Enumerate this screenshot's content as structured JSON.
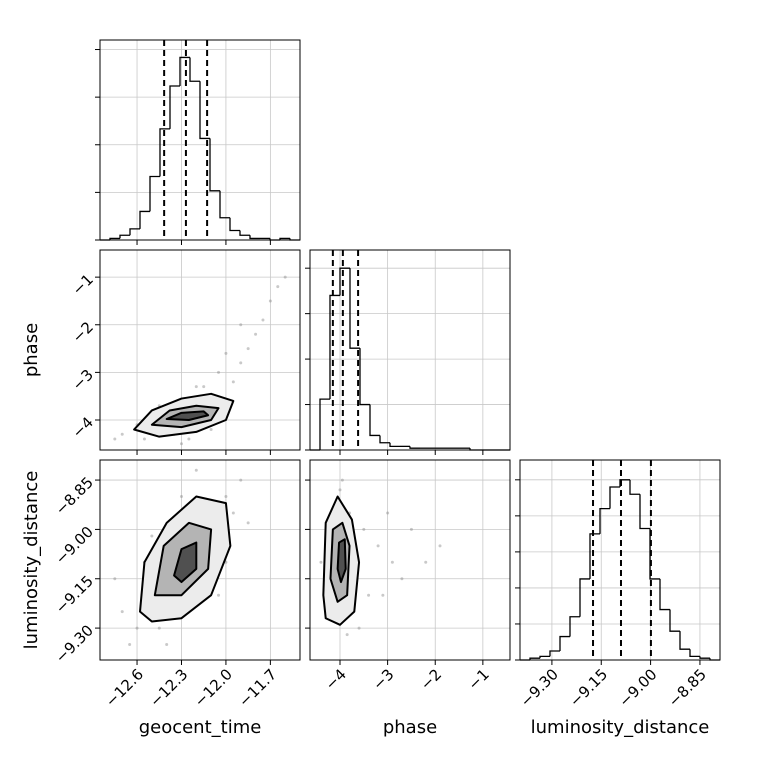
{
  "chart_data": [
    {
      "type": "histogram",
      "xlim": [
        -12.85,
        -11.5
      ],
      "ylim": [
        0,
        126
      ],
      "xticks": [
        -12.6,
        -12.3,
        -12.0,
        -11.7
      ],
      "yticks": [
        0,
        30,
        60,
        90,
        120
      ],
      "bins": [
        -12.85,
        -12.7825,
        -12.715,
        -12.6475,
        -12.58,
        -12.5125,
        -12.445,
        -12.3775,
        -12.31,
        -12.2425,
        -12.175,
        -12.1075,
        -12.04,
        -11.9725,
        -11.905,
        -11.8375,
        -11.77,
        -11.7025,
        -11.635,
        -11.5675,
        -11.5
      ],
      "counts": [
        0,
        1,
        3,
        7,
        18,
        40,
        70,
        97,
        115,
        100,
        64,
        31,
        14,
        6,
        3,
        1,
        1,
        0,
        1,
        0
      ],
      "quantiles": [
        -12.417,
        -12.27,
        -12.127
      ],
      "color": "#000000"
    },
    {
      "type": "scatter",
      "xlim": [
        -12.85,
        -11.5
      ],
      "ylim": [
        -4.63,
        -0.43
      ],
      "ylabel": "phase",
      "xticks": [
        -12.6,
        -12.3,
        -12.0,
        -11.7
      ],
      "yticks": [
        {
          "value": -4,
          "label": "−4"
        },
        {
          "value": -3,
          "label": "−3"
        },
        {
          "value": -2,
          "label": "−2"
        },
        {
          "value": -1,
          "label": "−1"
        }
      ],
      "color": "#888888",
      "points": {
        "x": [
          -12.3,
          -12.2,
          -12.4,
          -12.5,
          -12.1,
          -12.0,
          -12.35,
          -12.25,
          -12.6,
          -12.7,
          -12.15,
          -11.95,
          -11.9,
          -11.85,
          -12.05,
          -11.8,
          -11.75,
          -11.7,
          -11.65,
          -11.9,
          -12.45,
          -12.55,
          -12.2,
          -12.1,
          -11.6,
          -12.0,
          -12.3,
          -12.75
        ],
        "y": [
          -3.9,
          -3.8,
          -4.1,
          -4.2,
          -3.7,
          -3.6,
          -4.3,
          -4.4,
          -4.1,
          -4.3,
          -3.3,
          -3.2,
          -2.8,
          -2.5,
          -3.0,
          -2.2,
          -1.9,
          -1.5,
          -1.2,
          -2.0,
          -3.7,
          -4.4,
          -3.3,
          -4.2,
          -1.0,
          -2.6,
          -4.5,
          -4.4
        ]
      },
      "contours": [
        {
          "color": "#ececec",
          "x": [
            -12.62,
            -12.5,
            -12.3,
            -12.1,
            -11.95,
            -12.0,
            -12.2,
            -12.45,
            -12.62
          ],
          "y": [
            -4.2,
            -3.8,
            -3.55,
            -3.45,
            -3.6,
            -4.0,
            -4.25,
            -4.35,
            -4.2
          ]
        },
        {
          "color": "#b4b4b4",
          "x": [
            -12.5,
            -12.38,
            -12.2,
            -12.05,
            -12.1,
            -12.3,
            -12.5
          ],
          "y": [
            -4.1,
            -3.8,
            -3.7,
            -3.75,
            -4.0,
            -4.15,
            -4.1
          ]
        },
        {
          "color": "#505050",
          "x": [
            -12.4,
            -12.3,
            -12.15,
            -12.12,
            -12.25,
            -12.4
          ],
          "y": [
            -3.98,
            -3.85,
            -3.82,
            -3.9,
            -4.0,
            -3.98
          ]
        }
      ]
    },
    {
      "type": "histogram",
      "xlim": [
        -4.63,
        -0.43
      ],
      "ylim": [
        0,
        110
      ],
      "xticks": [
        -4,
        -3,
        -2,
        -1
      ],
      "yticks": [
        0,
        25,
        50,
        75,
        100
      ],
      "bins": [
        -4.63,
        -4.42,
        -4.21,
        -4.0,
        -3.79,
        -3.58,
        -3.37,
        -3.16,
        -2.95,
        -2.74,
        -2.53,
        -2.32,
        -2.11,
        -1.9,
        -1.69,
        -1.48,
        -1.27,
        -1.06,
        -0.85,
        -0.64,
        -0.43
      ],
      "counts": [
        0,
        28,
        85,
        100,
        56,
        25,
        8,
        4,
        2,
        2,
        1,
        1,
        1,
        1,
        1,
        1,
        0,
        0,
        0,
        0
      ],
      "quantiles": [
        -4.15,
        -3.94,
        -3.62
      ],
      "color": "#000000"
    },
    {
      "type": "scatter",
      "xlim": [
        -12.85,
        -11.5
      ],
      "ylim": [
        -9.397,
        -8.789
      ],
      "xlabel": "geocent_time",
      "ylabel": "luminosity_distance",
      "xticks": [
        {
          "value": -12.6,
          "label": "−12.6"
        },
        {
          "value": -12.3,
          "label": "−12.3"
        },
        {
          "value": -12.0,
          "label": "−12.0"
        },
        {
          "value": -11.7,
          "label": "−11.7"
        }
      ],
      "yticks": [
        {
          "value": -9.3,
          "label": "−9.30"
        },
        {
          "value": -9.15,
          "label": "−9.15"
        },
        {
          "value": -9.0,
          "label": "−9.00"
        },
        {
          "value": -8.85,
          "label": "−8.85"
        }
      ],
      "color": "#888888",
      "points": {
        "x": [
          -12.3,
          -12.2,
          -12.4,
          -12.5,
          -12.1,
          -12.0,
          -12.6,
          -12.7,
          -11.9,
          -11.95,
          -12.35,
          -12.25,
          -12.45,
          -12.15,
          -12.55,
          -12.05,
          -12.65,
          -11.85,
          -12.3,
          -12.2,
          -12.4,
          -12.0,
          -12.5,
          -12.75
        ],
        "y": [
          -9.1,
          -9.05,
          -9.15,
          -9.2,
          -8.95,
          -8.9,
          -9.3,
          -9.25,
          -8.85,
          -8.95,
          -9.0,
          -9.25,
          -9.3,
          -9.15,
          -9.1,
          -9.2,
          -9.35,
          -8.98,
          -8.9,
          -8.82,
          -9.35,
          -9.1,
          -9.02,
          -9.15
        ]
      },
      "contours": [
        {
          "color": "#ececec",
          "x": [
            -12.58,
            -12.55,
            -12.4,
            -12.2,
            -12.0,
            -11.97,
            -12.1,
            -12.3,
            -12.5,
            -12.58
          ],
          "y": [
            -9.25,
            -9.1,
            -8.98,
            -8.9,
            -8.92,
            -9.05,
            -9.2,
            -9.27,
            -9.28,
            -9.25
          ]
        },
        {
          "color": "#b4b4b4",
          "x": [
            -12.48,
            -12.42,
            -12.25,
            -12.1,
            -12.12,
            -12.3,
            -12.48
          ],
          "y": [
            -9.2,
            -9.05,
            -8.98,
            -9.0,
            -9.12,
            -9.2,
            -9.2
          ]
        },
        {
          "color": "#505050",
          "x": [
            -12.35,
            -12.3,
            -12.2,
            -12.2,
            -12.3,
            -12.35
          ],
          "y": [
            -9.14,
            -9.06,
            -9.04,
            -9.12,
            -9.16,
            -9.14
          ]
        }
      ]
    },
    {
      "type": "scatter",
      "xlim": [
        -4.63,
        -0.43
      ],
      "ylim": [
        -9.397,
        -8.789
      ],
      "xlabel": "phase",
      "xticks": [
        {
          "value": -4,
          "label": "−4"
        },
        {
          "value": -3,
          "label": "−3"
        },
        {
          "value": -2,
          "label": "−2"
        },
        {
          "value": -1,
          "label": "−1"
        }
      ],
      "yticks": [
        -9.3,
        -9.15,
        -9.0,
        -8.85
      ],
      "color": "#888888",
      "points": {
        "x": [
          -4.0,
          -3.9,
          -4.1,
          -4.2,
          -3.8,
          -3.7,
          -4.3,
          -3.5,
          -3.2,
          -2.9,
          -2.5,
          -3.0,
          -4.4,
          -3.6,
          -4.0,
          -3.85,
          -4.15,
          -3.4,
          -2.7,
          -3.1,
          -4.25,
          -3.95,
          -1.9,
          -2.2
        ],
        "y": [
          -9.1,
          -9.0,
          -9.2,
          -9.05,
          -8.95,
          -9.15,
          -9.25,
          -9.0,
          -9.05,
          -9.1,
          -9.0,
          -8.95,
          -9.1,
          -9.3,
          -8.88,
          -9.32,
          -8.95,
          -9.2,
          -9.15,
          -9.2,
          -9.05,
          -8.85,
          -9.05,
          -9.1
        ]
      },
      "contours": [
        {
          "color": "#ececec",
          "x": [
            -4.35,
            -4.3,
            -4.05,
            -3.75,
            -3.6,
            -3.7,
            -4.0,
            -4.3,
            -4.35
          ],
          "y": [
            -9.2,
            -8.98,
            -8.9,
            -8.97,
            -9.1,
            -9.25,
            -9.29,
            -9.27,
            -9.2
          ]
        },
        {
          "color": "#b4b4b4",
          "x": [
            -4.2,
            -4.15,
            -3.95,
            -3.8,
            -3.85,
            -4.05,
            -4.2
          ],
          "y": [
            -9.15,
            -9.0,
            -8.98,
            -9.05,
            -9.2,
            -9.22,
            -9.15
          ]
        },
        {
          "color": "#505050",
          "x": [
            -4.05,
            -4.02,
            -3.9,
            -3.88,
            -3.98,
            -4.05
          ],
          "y": [
            -9.12,
            -9.04,
            -9.03,
            -9.12,
            -9.16,
            -9.12
          ]
        }
      ]
    },
    {
      "type": "histogram",
      "xlim": [
        -9.397,
        -8.789
      ],
      "ylim": [
        0,
        111
      ],
      "xlabel": "luminosity_distance",
      "xticks": [
        {
          "value": -9.3,
          "label": "−9.30"
        },
        {
          "value": -9.15,
          "label": "−9.15"
        },
        {
          "value": -9.0,
          "label": "−9.00"
        },
        {
          "value": -8.85,
          "label": "−8.85"
        }
      ],
      "yticks": [
        0,
        20,
        40,
        60,
        80,
        100
      ],
      "bins": [
        -9.397,
        -9.3666,
        -9.3362,
        -9.3058,
        -9.2754,
        -9.245,
        -9.2146,
        -9.1842,
        -9.1538,
        -9.1234,
        -9.093,
        -9.0626,
        -9.0322,
        -9.0018,
        -8.9714,
        -8.941,
        -8.9106,
        -8.8802,
        -8.8498,
        -8.8194,
        -8.789
      ],
      "counts": [
        0,
        1,
        2,
        5,
        13,
        24,
        45,
        70,
        84,
        96,
        100,
        92,
        73,
        45,
        28,
        16,
        6,
        2,
        1,
        0
      ],
      "quantiles": [
        -9.175,
        -9.09,
        -8.999
      ],
      "color": "#000000"
    }
  ]
}
